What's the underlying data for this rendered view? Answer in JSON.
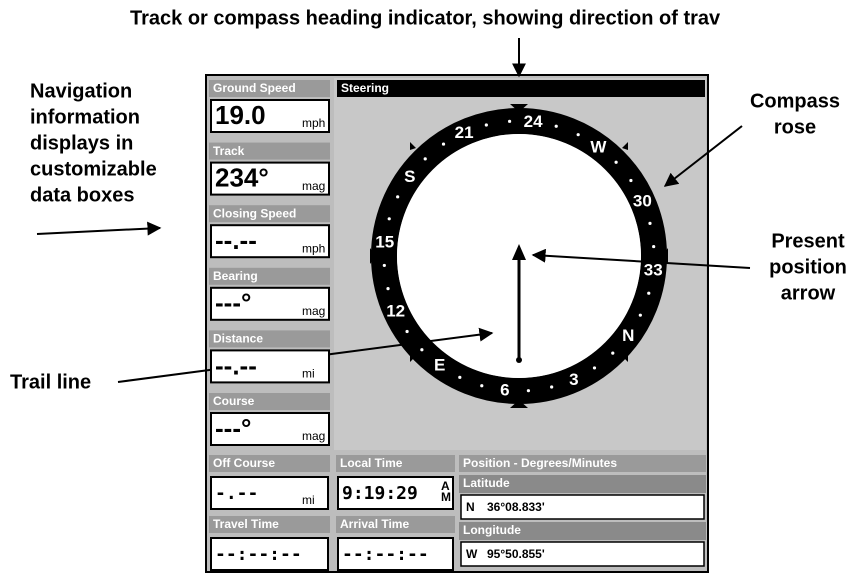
{
  "annotations": {
    "heading_indicator": "Track or compass heading indicator, showing direction of trav",
    "data_boxes": [
      "Navigation",
      "information",
      "displays in",
      "customizable",
      "data boxes"
    ],
    "compass_rose": [
      "Compass",
      "rose"
    ],
    "present_position": [
      "Present",
      "position",
      "arrow"
    ],
    "trail_line": "Trail line"
  },
  "data_boxes": [
    {
      "label": "Ground Speed",
      "value": "19.0",
      "unit": "mph"
    },
    {
      "label": "Track",
      "value": "234°",
      "unit": "mag"
    },
    {
      "label": "Closing Speed",
      "value": "--.--",
      "unit": "mph"
    },
    {
      "label": "Bearing",
      "value": "---°",
      "unit": "mag"
    },
    {
      "label": "Distance",
      "value": "--.--",
      "unit": "mi"
    },
    {
      "label": "Course",
      "value": "---°",
      "unit": "mag"
    }
  ],
  "steering": {
    "title": "Steering",
    "compass_labels": [
      "24",
      "W",
      "30",
      "33",
      "N",
      "3",
      "6",
      "E",
      "12",
      "15",
      "S",
      "21"
    ]
  },
  "bottom": {
    "off_course": {
      "label": "Off Course",
      "value": "-.--",
      "unit": "mi"
    },
    "travel_time": {
      "label": "Travel Time",
      "value": "--:--:--"
    },
    "local_time": {
      "label": "Local Time",
      "value": "9:19:29",
      "ampm": [
        "A",
        "M"
      ]
    },
    "arrival_time": {
      "label": "Arrival Time",
      "value": "--:--:--"
    },
    "position": {
      "title": "Position - Degrees/Minutes",
      "latitude_label": "Latitude",
      "latitude_hemisphere": "N",
      "latitude": "36°08.833'",
      "longitude_label": "Longitude",
      "longitude_hemisphere": "W",
      "longitude": "95°50.855'"
    }
  }
}
